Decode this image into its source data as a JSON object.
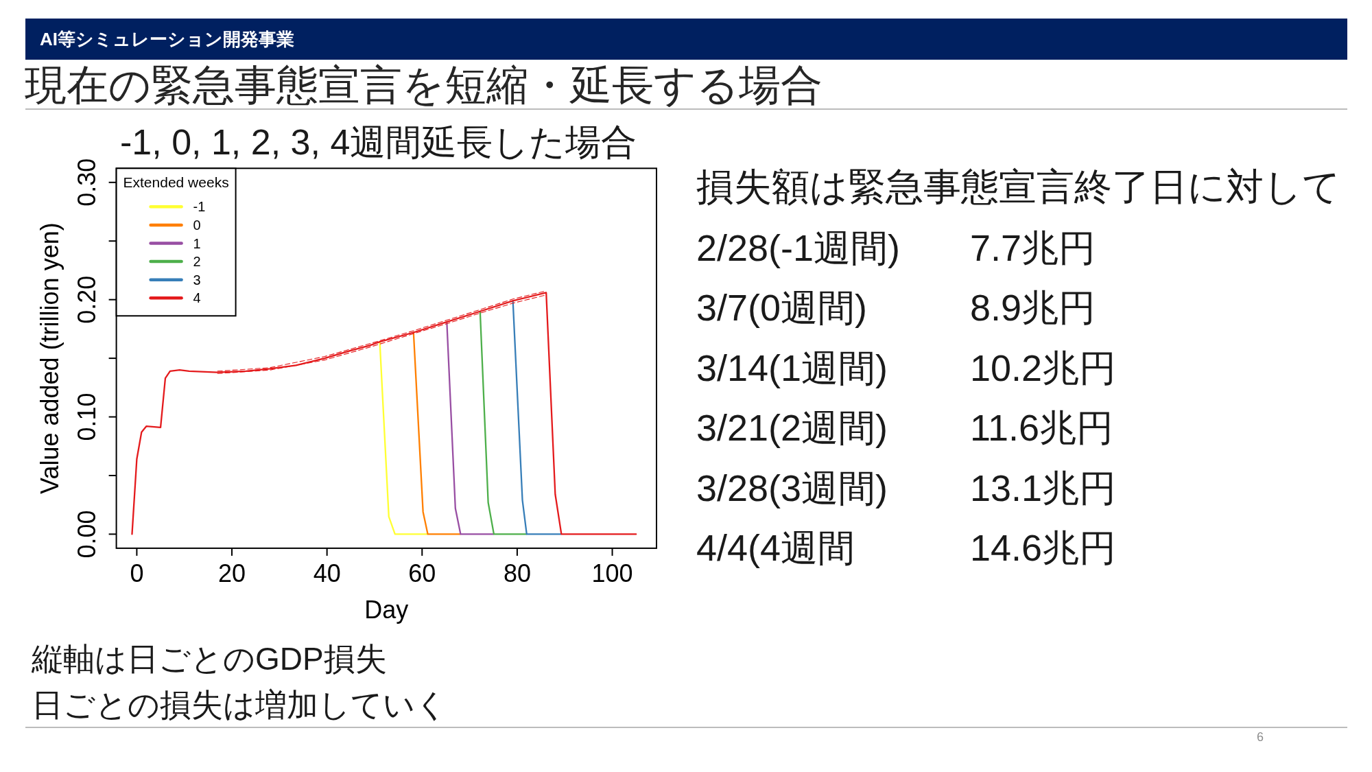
{
  "chart_data": [
    {
      "type": "other",
      "title": "現在の緊急事態宣言を短縮・延長する場合",
      "annotations": [
        "AI等シミュレーション開発事業",
        "6"
      ]
    },
    {
      "type": "line",
      "title": "-1, 0, 1, 2, 3, 4週間延長した場合",
      "xlabel": "Day",
      "ylabel": "Value added (trillion yen)",
      "legend_title": "Extended weeks",
      "legend": "top left",
      "xlim": [
        -4.3,
        109.3
      ],
      "ylim": [
        -0.012,
        0.312
      ],
      "xticks": [
        0,
        20,
        40,
        60,
        80,
        100
      ],
      "yticks": [
        {
          "value": 0,
          "label": "0.00"
        },
        {
          "value": 0.05,
          "label": null
        },
        {
          "value": 0.1,
          "label": "0.10"
        },
        {
          "value": 0.15,
          "label": null
        },
        {
          "value": 0.2,
          "label": "0.20"
        },
        {
          "value": 0.25,
          "label": null
        },
        {
          "value": 0.3,
          "label": "0.30"
        }
      ],
      "annotations": [
        "縦軸は日ごとのGDP損失",
        "日ごとの損失は増加していく"
      ],
      "series": [
        {
          "name": "-1",
          "color": "#ffff33",
          "x": [
            51.1,
            53,
            54.3,
            61
          ],
          "values": [
            0.164,
            0.015,
            0,
            0
          ]
        },
        {
          "name": "0",
          "color": "#ff7f00",
          "x": [
            58.2,
            60.2,
            61.2,
            68
          ],
          "values": [
            0.172,
            0.019,
            0,
            0
          ]
        },
        {
          "name": "1",
          "color": "#984ea3",
          "x": [
            65.2,
            67,
            68.1,
            75
          ],
          "values": [
            0.181,
            0.022,
            0,
            0
          ]
        },
        {
          "name": "2",
          "color": "#4daf4a",
          "x": [
            72.2,
            73.9,
            75.1,
            81.9
          ],
          "values": [
            0.19,
            0.027,
            0,
            0
          ]
        },
        {
          "name": "3",
          "color": "#377eb8",
          "x": [
            79.1,
            81.1,
            82,
            89.2
          ],
          "values": [
            0.199,
            0.029,
            0,
            0
          ]
        },
        {
          "name": "4",
          "color": "#e41a1c",
          "x": [
            -1,
            0,
            1,
            2,
            5,
            6,
            7,
            9,
            11,
            17,
            23,
            28,
            33.5,
            39.5,
            44.5,
            49,
            51.1,
            58.2,
            65.2,
            72.2,
            79.1,
            86.1,
            88,
            89.3,
            105
          ],
          "values": [
            0,
            0.064,
            0.087,
            0.092,
            0.091,
            0.133,
            0.139,
            0.14,
            0.139,
            0.138,
            0.139,
            0.141,
            0.144,
            0.15,
            0.156,
            0.161,
            0.164,
            0.172,
            0.181,
            0.19,
            0.199,
            0.206,
            0.034,
            0,
            0
          ]
        },
        {
          "color": "#e41a1c",
          "line_style": "dashed",
          "x": [
            17,
            28,
            39.5,
            49,
            58.2,
            65.2,
            72.2,
            79.1,
            86.1
          ],
          "values": [
            0.139,
            0.142,
            0.1515,
            0.1625,
            0.1735,
            0.1825,
            0.1915,
            0.2005,
            0.2075
          ]
        },
        {
          "color": "#e41a1c",
          "line_style": "dashed",
          "x": [
            17,
            28,
            39.5,
            49,
            58.2,
            65.2,
            72.2,
            79.1,
            86.1
          ],
          "values": [
            0.137,
            0.14,
            0.1485,
            0.1595,
            0.171,
            0.1795,
            0.1885,
            0.197,
            0.204
          ]
        }
      ]
    },
    {
      "type": "other",
      "title": "損失額は緊急事態宣言終了日に対して",
      "annotations": [
        "2/28(-1週間)",
        "7.7兆円",
        "3/7(0週間)",
        "8.9兆円",
        "3/14(1週間)",
        "10.2兆円",
        "3/21(2週間)",
        "11.6兆円",
        "3/28(3週間)",
        "13.1兆円",
        "4/4(4週間",
        "14.6兆円"
      ]
    }
  ]
}
